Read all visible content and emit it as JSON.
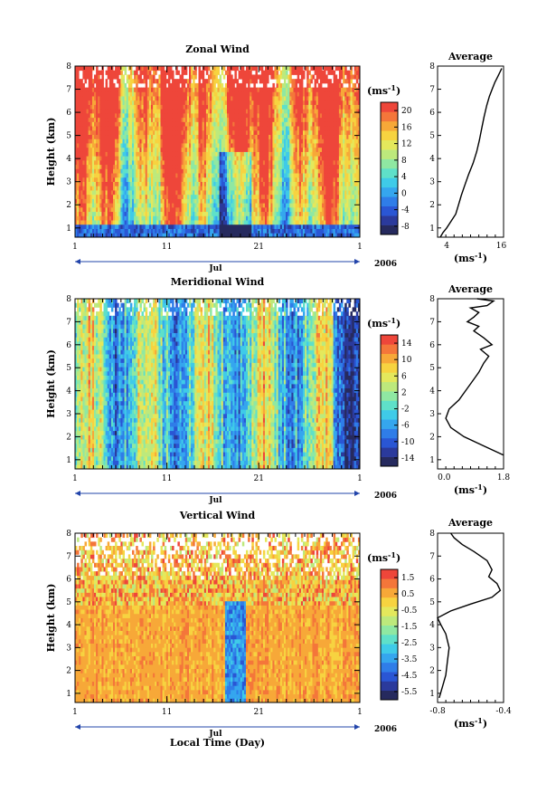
{
  "colors": {
    "zonal": [
      "#262a5e",
      "#2b3a9c",
      "#2a56d4",
      "#2f7de8",
      "#35a6ee",
      "#3fcbe8",
      "#5fe0c9",
      "#8fe8a2",
      "#bde97c",
      "#e4e85c",
      "#f7d340",
      "#f7a838",
      "#f4763a",
      "#ee463a"
    ],
    "meridional": [
      "#262a5e",
      "#2b3a9c",
      "#2a56d4",
      "#2f7de8",
      "#35a6ee",
      "#3fcbe8",
      "#5fe0c9",
      "#8fe8a2",
      "#bde97c",
      "#e4e85c",
      "#f7d340",
      "#f7a838",
      "#f4763a",
      "#ee463a"
    ],
    "vertical": [
      "#262a5e",
      "#2b3a9c",
      "#2a56d4",
      "#2f7de8",
      "#35a6ee",
      "#3fcbe8",
      "#5fe0c9",
      "#8fe8a2",
      "#bde97c",
      "#e4e85c",
      "#f7d340",
      "#f7a838",
      "#f4763a",
      "#ee463a"
    ]
  },
  "chart_data": [
    {
      "type": "heatmap",
      "title": "Zonal Wind",
      "ylabel": "Height (km)",
      "ylim": [
        0.6,
        8
      ],
      "yticks": [
        "1",
        "2",
        "3",
        "4",
        "5",
        "6",
        "7",
        "8"
      ],
      "xticks": [
        "1",
        "11",
        "21",
        "1"
      ],
      "month_label": "Jul",
      "year_label": "2006",
      "colorbar": {
        "unit": "(ms",
        "unit_sup": "-1",
        "unit_close": ")",
        "min": -10,
        "max": 22,
        "labels": [
          "20",
          "16",
          "12",
          "8",
          "4",
          "0",
          "-4",
          "-8"
        ],
        "label_values": [
          20,
          16,
          12,
          8,
          4,
          0,
          -4,
          -8
        ]
      },
      "profile": {
        "title": "Average",
        "xlabel": "(ms",
        "xlabel_sup": "-1",
        "xlabel_close": ")",
        "xlim": [
          2,
          16.5
        ],
        "xticks": [
          "4",
          "16"
        ],
        "xtick_values": [
          4,
          16
        ],
        "ylim": [
          0.6,
          8
        ],
        "x": [
          2.6,
          3.2,
          4.0,
          5.0,
          6.0,
          6.6,
          7.2,
          7.9,
          8.8,
          9.8,
          10.6,
          11.2,
          11.6,
          12.2,
          12.8,
          13.4,
          14.0,
          14.6,
          15.1,
          15.6,
          16.1
        ],
        "y": [
          0.6,
          0.8,
          1.0,
          1.3,
          1.6,
          2.0,
          2.4,
          2.8,
          3.3,
          3.8,
          4.3,
          4.8,
          5.2,
          5.8,
          6.3,
          6.7,
          7.0,
          7.3,
          7.5,
          7.7,
          7.9
        ]
      }
    },
    {
      "type": "heatmap",
      "title": "Meridional Wind",
      "ylabel": "Height (km)",
      "ylim": [
        0.6,
        8
      ],
      "yticks": [
        "1",
        "2",
        "3",
        "4",
        "5",
        "6",
        "7",
        "8"
      ],
      "xticks": [
        "1",
        "11",
        "21",
        "1"
      ],
      "month_label": "Jul",
      "year_label": "2006",
      "colorbar": {
        "unit": "(ms",
        "unit_sup": "-1",
        "unit_close": ")",
        "min": -16,
        "max": 16,
        "labels": [
          "14",
          "10",
          "6",
          "2",
          "-2",
          "-6",
          "-10",
          "-14"
        ],
        "label_values": [
          14,
          10,
          6,
          2,
          -2,
          -6,
          -10,
          -14
        ]
      },
      "profile": {
        "title": "Average",
        "xlabel": "(ms",
        "xlabel_sup": "-1",
        "xlabel_close": ")",
        "xlim": [
          -0.2,
          1.8
        ],
        "xticks": [
          "0.0",
          "1.8"
        ],
        "xtick_values": [
          0.0,
          1.8
        ],
        "ylim": [
          0.6,
          8
        ],
        "x": [
          1.8,
          1.2,
          0.6,
          0.2,
          0.05,
          0.15,
          0.45,
          0.65,
          0.85,
          1.05,
          1.2,
          1.35,
          1.1,
          1.45,
          1.2,
          0.9,
          1.05,
          0.7,
          0.9,
          1.05,
          0.8,
          1.3,
          1.5,
          1.0
        ],
        "y": [
          1.2,
          1.6,
          2.0,
          2.4,
          2.8,
          3.2,
          3.6,
          4.0,
          4.4,
          4.8,
          5.2,
          5.5,
          5.8,
          6.0,
          6.3,
          6.6,
          6.8,
          7.0,
          7.2,
          7.4,
          7.6,
          7.7,
          7.9,
          8.0
        ]
      }
    },
    {
      "type": "heatmap",
      "title": "Vertical Wind",
      "ylabel": "Height (km)",
      "xlabel": "Local Time (Day)",
      "ylim": [
        0.6,
        8
      ],
      "yticks": [
        "1",
        "2",
        "3",
        "4",
        "5",
        "6",
        "7",
        "8"
      ],
      "xticks": [
        "1",
        "11",
        "21",
        "1"
      ],
      "month_label": "Jul",
      "year_label": "2006",
      "colorbar": {
        "unit": "(ms",
        "unit_sup": "-1",
        "unit_close": ")",
        "min": -6.0,
        "max": 2.0,
        "labels": [
          "1.5",
          "0.5",
          "-0.5",
          "-1.5",
          "-2.5",
          "-3.5",
          "-4.5",
          "-5.5"
        ],
        "label_values": [
          1.5,
          0.5,
          -0.5,
          -1.5,
          -2.5,
          -3.5,
          -4.5,
          -5.5
        ]
      },
      "profile": {
        "title": "Average",
        "xlabel": "(ms",
        "xlabel_sup": "-1",
        "xlabel_close": ")",
        "xlim": [
          -0.8,
          -0.4
        ],
        "xticks": [
          "-0.8",
          "-0.4"
        ],
        "xtick_values": [
          -0.8,
          -0.4
        ],
        "ylim": [
          0.6,
          8
        ],
        "x": [
          -0.79,
          -0.77,
          -0.75,
          -0.74,
          -0.73,
          -0.75,
          -0.78,
          -0.8,
          -0.72,
          -0.6,
          -0.47,
          -0.42,
          -0.44,
          -0.49,
          -0.47,
          -0.5,
          -0.58,
          -0.65,
          -0.7,
          -0.72
        ],
        "y": [
          0.8,
          1.3,
          1.8,
          2.4,
          3.0,
          3.6,
          4.0,
          4.3,
          4.6,
          4.9,
          5.2,
          5.5,
          5.8,
          6.1,
          6.4,
          6.8,
          7.2,
          7.5,
          7.8,
          8.0
        ]
      }
    }
  ]
}
